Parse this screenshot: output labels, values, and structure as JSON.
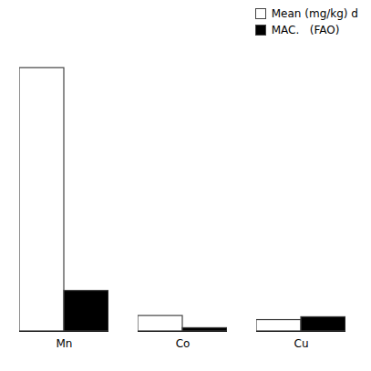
{
  "chart_data": {
    "type": "bar",
    "categories": [
      "Mn",
      "Co",
      "Cu"
    ],
    "series": [
      {
        "name": "Mean (mg/kg) d",
        "color": "white",
        "values": [
          650,
          38,
          28
        ]
      },
      {
        "name": "MAC.   (FAO)",
        "color": "black",
        "values": [
          100,
          8,
          35
        ]
      }
    ],
    "ylim": [
      0,
      700
    ],
    "tick_labels": "x",
    "legend": "upper right"
  }
}
